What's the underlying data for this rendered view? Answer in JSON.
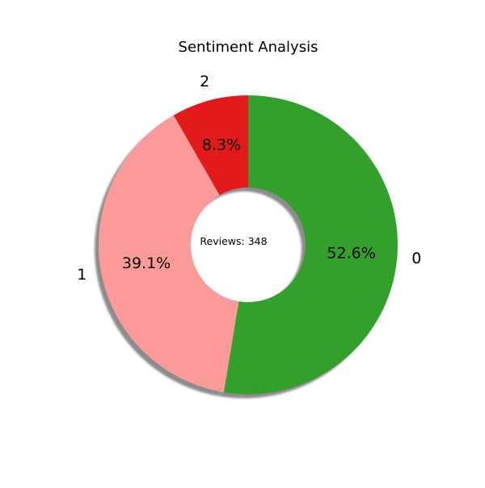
{
  "chart_data": {
    "type": "pie",
    "title": "Sentiment Analysis",
    "categories": [
      "0",
      "1",
      "2"
    ],
    "values": [
      52.6,
      39.1,
      8.3
    ],
    "percent_labels": [
      "52.6%",
      "39.1%",
      "8.3%"
    ],
    "colors": [
      "#33a02c",
      "#fb9a99",
      "#e31a1c"
    ],
    "donut": true,
    "shadow": true,
    "start_angle_deg": 90,
    "direction": "clockwise",
    "center_text": "Reviews: 348",
    "legend": "none"
  }
}
